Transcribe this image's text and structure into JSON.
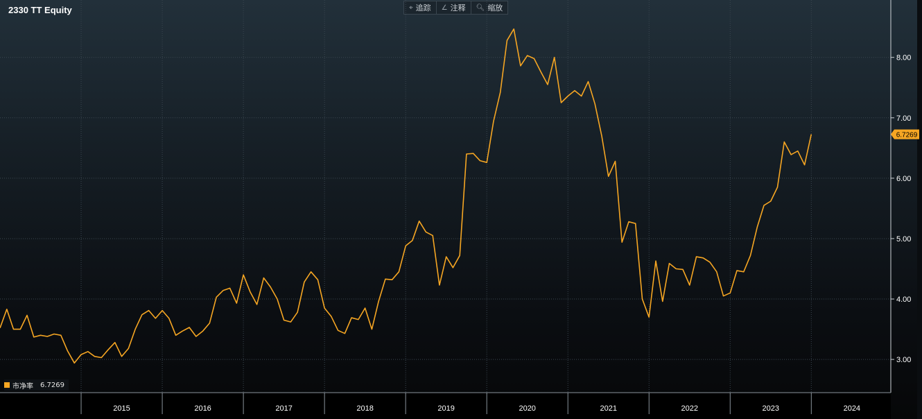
{
  "title": "2330 TT Equity",
  "toolbar": {
    "buttons": [
      {
        "icon": "crosshair-icon",
        "glyph": "⌖",
        "label": "追踪"
      },
      {
        "icon": "annotate-icon",
        "glyph": "∠",
        "label": "注释"
      },
      {
        "icon": "zoom-icon",
        "glyph": "🔍︎",
        "label": "缩放"
      }
    ]
  },
  "legend": {
    "label": "市净率",
    "value": "6.7269",
    "color": "#f6a623"
  },
  "colors": {
    "line": "#f6a623",
    "grid": "#3a4650",
    "axis_text": "#ffffff",
    "badge": "#f6a623"
  },
  "chart_data": {
    "type": "line",
    "title": "2330 TT Equity",
    "xlabel": "",
    "ylabel": "",
    "ylim": [
      2.45,
      8.95
    ],
    "xlim": [
      2014.0,
      2024.98
    ],
    "grid": true,
    "legend_position": "bottom-left",
    "y_ticks": [
      3.0,
      4.0,
      5.0,
      6.0,
      7.0,
      8.0
    ],
    "y_tick_labels": [
      "3.00",
      "4.00",
      "5.00",
      "6.00",
      "7.00",
      "8.00"
    ],
    "x_tick_labels": [
      "2015",
      "2016",
      "2017",
      "2018",
      "2019",
      "2020",
      "2021",
      "2022",
      "2023",
      "2024"
    ],
    "last_value_label": "6.7269",
    "series": [
      {
        "name": "市净率",
        "start": "2014-01",
        "step": "month",
        "values": [
          3.52,
          3.83,
          3.5,
          3.5,
          3.73,
          3.37,
          3.4,
          3.38,
          3.42,
          3.4,
          3.14,
          2.94,
          3.08,
          3.13,
          3.05,
          3.03,
          3.16,
          3.28,
          3.05,
          3.18,
          3.5,
          3.74,
          3.81,
          3.68,
          3.81,
          3.68,
          3.4,
          3.47,
          3.53,
          3.38,
          3.47,
          3.6,
          4.03,
          4.14,
          4.18,
          3.93,
          4.4,
          4.12,
          3.91,
          4.35,
          4.2,
          4.0,
          3.65,
          3.62,
          3.78,
          4.28,
          4.45,
          4.32,
          3.85,
          3.71,
          3.48,
          3.43,
          3.69,
          3.66,
          3.85,
          3.5,
          3.96,
          4.33,
          4.32,
          4.45,
          4.88,
          4.97,
          5.29,
          5.11,
          5.05,
          4.23,
          4.7,
          4.52,
          4.72,
          6.4,
          6.41,
          6.29,
          6.26,
          6.94,
          7.42,
          8.28,
          8.47,
          7.86,
          8.03,
          7.98,
          7.76,
          7.55,
          8.0,
          7.25,
          7.36,
          7.45,
          7.36,
          7.6,
          7.23,
          6.7,
          6.03,
          6.28,
          4.94,
          5.28,
          5.25,
          4.0,
          3.7,
          4.63,
          3.96,
          4.59,
          4.5,
          4.49,
          4.23,
          4.7,
          4.68,
          4.61,
          4.45,
          4.05,
          4.1,
          4.47,
          4.45,
          4.72,
          5.19,
          5.55,
          5.62,
          5.85,
          6.6,
          6.39,
          6.45,
          6.22,
          6.7269
        ]
      }
    ]
  }
}
